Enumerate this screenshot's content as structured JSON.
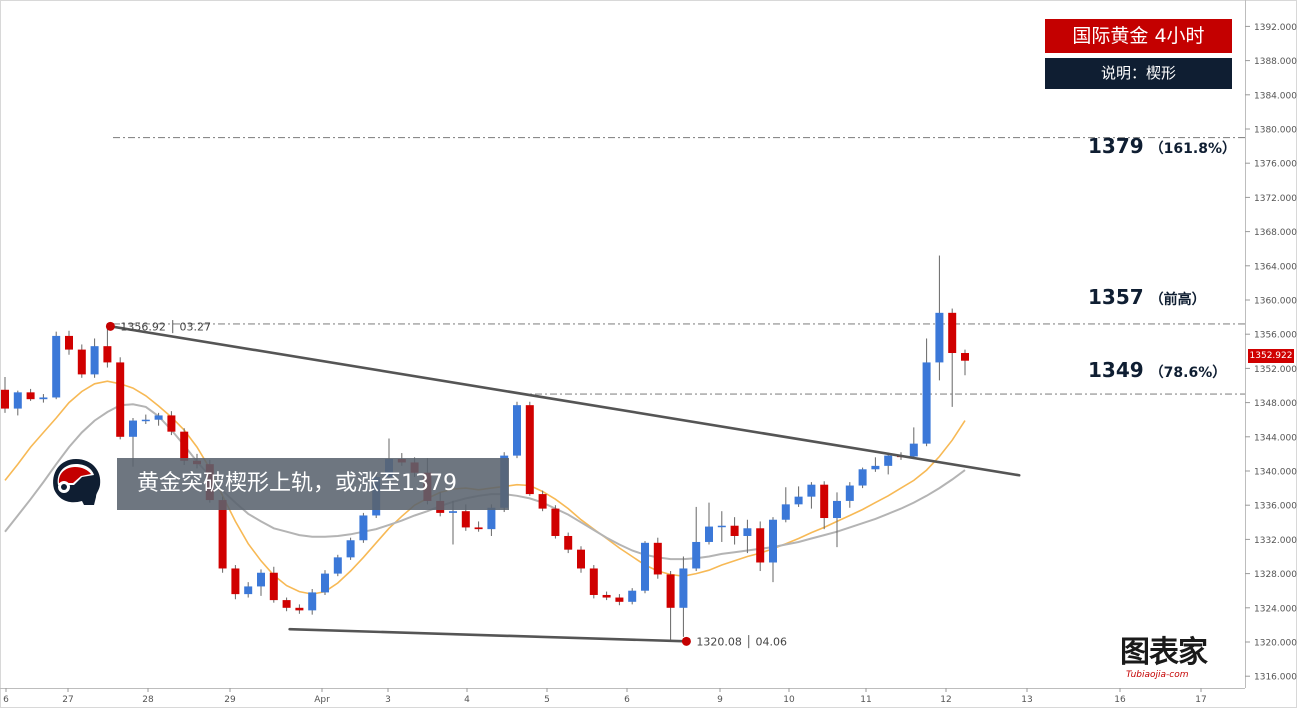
{
  "title": "国际黄金  4小时",
  "subtitle": "说明：楔形",
  "banner": "黄金突破楔形上轨，或涨至1379",
  "levels": [
    {
      "price": "1379",
      "note": "（161.8%）",
      "value": 1379
    },
    {
      "price": "1357",
      "note": "（前高）",
      "value": 1357.2
    },
    {
      "price": "1349",
      "note": "（78.6%）",
      "value": 1349
    }
  ],
  "current_price": "1352.922",
  "current_price_value": 1352.922,
  "logo": {
    "main": "图表家",
    "sub": "Tubiaojia-com"
  },
  "icons": {
    "avatar": "trader-head-icon",
    "logo": "tubiaojia-logo-icon"
  },
  "colors": {
    "bull": "#3b78d8",
    "bear": "#d00000",
    "ma_fast": "#f7b955",
    "ma_slow": "#b4b4b4",
    "trend": "#555555",
    "title_bg": "#c40000",
    "subtitle_bg": "#0f1e32"
  },
  "chart_data": {
    "type": "candlestick",
    "title": "国际黄金  4小时",
    "x_tick_labels": [
      "6",
      "27",
      "28",
      "29",
      "Apr",
      "3",
      "4",
      "5",
      "6",
      "9",
      "10",
      "11",
      "12",
      "13",
      "16",
      "17"
    ],
    "y_ticks": [
      1316,
      1320,
      1324,
      1328,
      1332,
      1336,
      1340,
      1344,
      1348,
      1352,
      1356,
      1360,
      1364,
      1368,
      1372,
      1376,
      1380,
      1384,
      1388,
      1392
    ],
    "y_tick_labels": [
      "1316.000",
      "1320.000",
      "1324.000",
      "1328.000",
      "1332.000",
      "1336.000",
      "1340.000",
      "1344.000",
      "1348.000",
      "1352.000",
      "1356.000",
      "1360.000",
      "1364.000",
      "1368.000",
      "1372.000",
      "1376.000",
      "1380.000",
      "1384.000",
      "1388.000",
      "1392.000"
    ],
    "ylim": [
      1314.5,
      1393.5
    ],
    "candles": [
      {
        "o": 1349.5,
        "h": 1351.0,
        "l": 1346.8,
        "c": 1347.3
      },
      {
        "o": 1347.3,
        "h": 1349.4,
        "l": 1346.5,
        "c": 1349.2
      },
      {
        "o": 1349.2,
        "h": 1349.6,
        "l": 1348.2,
        "c": 1348.4
      },
      {
        "o": 1348.4,
        "h": 1349.0,
        "l": 1348.0,
        "c": 1348.6
      },
      {
        "o": 1348.6,
        "h": 1356.3,
        "l": 1348.4,
        "c": 1355.8
      },
      {
        "o": 1355.8,
        "h": 1356.4,
        "l": 1353.6,
        "c": 1354.2
      },
      {
        "o": 1354.2,
        "h": 1354.8,
        "l": 1350.9,
        "c": 1351.3
      },
      {
        "o": 1351.3,
        "h": 1355.5,
        "l": 1350.9,
        "c": 1354.6
      },
      {
        "o": 1354.6,
        "h": 1356.9,
        "l": 1352.1,
        "c": 1352.7
      },
      {
        "o": 1352.7,
        "h": 1353.3,
        "l": 1343.7,
        "c": 1344.0
      },
      {
        "o": 1344.0,
        "h": 1346.2,
        "l": 1340.5,
        "c": 1345.9
      },
      {
        "o": 1345.9,
        "h": 1346.6,
        "l": 1345.5,
        "c": 1346.0
      },
      {
        "o": 1346.0,
        "h": 1346.8,
        "l": 1345.3,
        "c": 1346.5
      },
      {
        "o": 1346.5,
        "h": 1347.0,
        "l": 1344.2,
        "c": 1344.6
      },
      {
        "o": 1344.6,
        "h": 1345.0,
        "l": 1340.7,
        "c": 1341.2
      },
      {
        "o": 1341.2,
        "h": 1342.0,
        "l": 1340.3,
        "c": 1340.8
      },
      {
        "o": 1340.8,
        "h": 1341.3,
        "l": 1336.3,
        "c": 1336.6
      },
      {
        "o": 1336.6,
        "h": 1337.0,
        "l": 1328.1,
        "c": 1328.6
      },
      {
        "o": 1328.6,
        "h": 1329.0,
        "l": 1325.0,
        "c": 1325.6
      },
      {
        "o": 1325.6,
        "h": 1327.0,
        "l": 1325.2,
        "c": 1326.5
      },
      {
        "o": 1326.5,
        "h": 1328.5,
        "l": 1325.4,
        "c": 1328.1
      },
      {
        "o": 1328.1,
        "h": 1328.8,
        "l": 1324.6,
        "c": 1324.9
      },
      {
        "o": 1324.9,
        "h": 1325.2,
        "l": 1323.6,
        "c": 1324.0
      },
      {
        "o": 1324.0,
        "h": 1324.4,
        "l": 1323.3,
        "c": 1323.7
      },
      {
        "o": 1323.7,
        "h": 1326.2,
        "l": 1323.2,
        "c": 1325.8
      },
      {
        "o": 1325.8,
        "h": 1328.4,
        "l": 1325.5,
        "c": 1328.0
      },
      {
        "o": 1328.0,
        "h": 1330.2,
        "l": 1327.7,
        "c": 1329.9
      },
      {
        "o": 1329.9,
        "h": 1332.2,
        "l": 1329.6,
        "c": 1331.9
      },
      {
        "o": 1331.9,
        "h": 1335.1,
        "l": 1331.6,
        "c": 1334.8
      },
      {
        "o": 1334.8,
        "h": 1339.6,
        "l": 1334.5,
        "c": 1339.3
      },
      {
        "o": 1339.3,
        "h": 1343.8,
        "l": 1339.0,
        "c": 1341.4
      },
      {
        "o": 1341.4,
        "h": 1342.1,
        "l": 1340.6,
        "c": 1341.0
      },
      {
        "o": 1341.0,
        "h": 1341.6,
        "l": 1339.3,
        "c": 1339.8
      },
      {
        "o": 1339.8,
        "h": 1341.5,
        "l": 1336.1,
        "c": 1336.5
      },
      {
        "o": 1336.5,
        "h": 1337.5,
        "l": 1334.7,
        "c": 1335.1
      },
      {
        "o": 1335.1,
        "h": 1336.5,
        "l": 1331.4,
        "c": 1335.3
      },
      {
        "o": 1335.3,
        "h": 1336.1,
        "l": 1333.0,
        "c": 1333.4
      },
      {
        "o": 1333.4,
        "h": 1334.1,
        "l": 1332.9,
        "c": 1333.2
      },
      {
        "o": 1333.2,
        "h": 1336.1,
        "l": 1332.4,
        "c": 1335.7
      },
      {
        "o": 1335.7,
        "h": 1342.2,
        "l": 1335.2,
        "c": 1341.8
      },
      {
        "o": 1341.8,
        "h": 1348.1,
        "l": 1341.5,
        "c": 1347.7
      },
      {
        "o": 1347.7,
        "h": 1348.1,
        "l": 1337.1,
        "c": 1337.3
      },
      {
        "o": 1337.3,
        "h": 1337.7,
        "l": 1335.3,
        "c": 1335.6
      },
      {
        "o": 1335.6,
        "h": 1336.0,
        "l": 1332.1,
        "c": 1332.4
      },
      {
        "o": 1332.4,
        "h": 1332.8,
        "l": 1330.4,
        "c": 1330.8
      },
      {
        "o": 1330.8,
        "h": 1331.2,
        "l": 1328.1,
        "c": 1328.6
      },
      {
        "o": 1328.6,
        "h": 1329.0,
        "l": 1325.1,
        "c": 1325.5
      },
      {
        "o": 1325.5,
        "h": 1325.9,
        "l": 1324.9,
        "c": 1325.2
      },
      {
        "o": 1325.2,
        "h": 1325.6,
        "l": 1324.3,
        "c": 1324.7
      },
      {
        "o": 1324.7,
        "h": 1326.3,
        "l": 1324.4,
        "c": 1326.0
      },
      {
        "o": 1326.0,
        "h": 1331.8,
        "l": 1325.7,
        "c": 1331.6
      },
      {
        "o": 1331.6,
        "h": 1332.2,
        "l": 1327.4,
        "c": 1327.9
      },
      {
        "o": 1327.9,
        "h": 1328.3,
        "l": 1320.1,
        "c": 1324.0
      },
      {
        "o": 1324.0,
        "h": 1330.0,
        "l": 1320.6,
        "c": 1328.6
      },
      {
        "o": 1328.6,
        "h": 1335.8,
        "l": 1328.3,
        "c": 1331.7
      },
      {
        "o": 1331.7,
        "h": 1336.3,
        "l": 1331.4,
        "c": 1333.5
      },
      {
        "o": 1333.5,
        "h": 1335.3,
        "l": 1331.7,
        "c": 1333.6
      },
      {
        "o": 1333.6,
        "h": 1334.6,
        "l": 1331.4,
        "c": 1332.4
      },
      {
        "o": 1332.4,
        "h": 1334.3,
        "l": 1330.4,
        "c": 1333.3
      },
      {
        "o": 1333.3,
        "h": 1334.1,
        "l": 1328.3,
        "c": 1329.3
      },
      {
        "o": 1329.3,
        "h": 1334.6,
        "l": 1327.0,
        "c": 1334.3
      },
      {
        "o": 1334.3,
        "h": 1338.1,
        "l": 1334.0,
        "c": 1336.1
      },
      {
        "o": 1336.1,
        "h": 1338.2,
        "l": 1335.8,
        "c": 1337.0
      },
      {
        "o": 1337.0,
        "h": 1338.7,
        "l": 1335.6,
        "c": 1338.4
      },
      {
        "o": 1338.4,
        "h": 1338.8,
        "l": 1333.2,
        "c": 1334.5
      },
      {
        "o": 1334.5,
        "h": 1337.5,
        "l": 1331.1,
        "c": 1336.5
      },
      {
        "o": 1336.5,
        "h": 1338.7,
        "l": 1335.7,
        "c": 1338.3
      },
      {
        "o": 1338.3,
        "h": 1340.4,
        "l": 1338.0,
        "c": 1340.2
      },
      {
        "o": 1340.2,
        "h": 1341.6,
        "l": 1339.9,
        "c": 1340.6
      },
      {
        "o": 1340.6,
        "h": 1342.1,
        "l": 1339.6,
        "c": 1341.8
      },
      {
        "o": 1341.8,
        "h": 1342.2,
        "l": 1341.3,
        "c": 1341.7
      },
      {
        "o": 1341.7,
        "h": 1345.1,
        "l": 1341.4,
        "c": 1343.2
      },
      {
        "o": 1343.2,
        "h": 1355.5,
        "l": 1342.9,
        "c": 1352.7
      },
      {
        "o": 1352.7,
        "h": 1365.2,
        "l": 1350.6,
        "c": 1358.5
      },
      {
        "o": 1358.5,
        "h": 1359.0,
        "l": 1347.5,
        "c": 1353.8
      },
      {
        "o": 1353.8,
        "h": 1354.2,
        "l": 1351.2,
        "c": 1352.9
      }
    ],
    "moving_averages": [
      {
        "role": "fast",
        "values": [
          1338.9,
          1340.8,
          1342.8,
          1344.5,
          1346.2,
          1348.0,
          1349.3,
          1350.2,
          1350.5,
          1350.2,
          1349.7,
          1348.8,
          1347.6,
          1346.3,
          1344.8,
          1342.8,
          1340.3,
          1337.1,
          1334.1,
          1331.5,
          1329.5,
          1327.8,
          1326.6,
          1325.9,
          1325.6,
          1325.9,
          1326.9,
          1328.3,
          1329.9,
          1331.6,
          1333.3,
          1334.7,
          1336.0,
          1336.8,
          1337.5,
          1337.9,
          1338.0,
          1337.8,
          1338.0,
          1338.2,
          1338.4,
          1338.3,
          1337.6,
          1336.7,
          1335.6,
          1334.3,
          1333.2,
          1332.1,
          1331.0,
          1330.0,
          1329.0,
          1328.3,
          1327.9,
          1327.7,
          1328.0,
          1328.4,
          1329.0,
          1329.5,
          1330.0,
          1330.4,
          1330.9,
          1331.5,
          1332.1,
          1332.8,
          1333.4,
          1334.1,
          1334.8,
          1335.5,
          1336.3,
          1337.1,
          1338.0,
          1338.9,
          1340.1,
          1341.7,
          1343.6,
          1345.9
        ]
      },
      {
        "role": "slow",
        "values": [
          1332.9,
          1334.8,
          1336.7,
          1338.7,
          1340.8,
          1342.8,
          1344.5,
          1345.9,
          1346.9,
          1347.7,
          1347.8,
          1347.5,
          1346.4,
          1344.8,
          1343.0,
          1341.1,
          1339.4,
          1337.7,
          1336.3,
          1335.0,
          1334.1,
          1333.3,
          1332.9,
          1332.5,
          1332.3,
          1332.3,
          1332.4,
          1332.6,
          1332.9,
          1333.2,
          1333.7,
          1334.2,
          1334.8,
          1335.3,
          1335.9,
          1336.4,
          1336.8,
          1337.1,
          1337.3,
          1337.3,
          1337.1,
          1336.8,
          1336.3,
          1335.6,
          1334.9,
          1334.0,
          1333.1,
          1332.2,
          1331.4,
          1330.7,
          1330.2,
          1329.9,
          1329.7,
          1329.7,
          1329.8,
          1330.0,
          1330.3,
          1330.5,
          1330.7,
          1330.9,
          1331.1,
          1331.4,
          1331.7,
          1332.1,
          1332.5,
          1332.9,
          1333.4,
          1333.9,
          1334.4,
          1335.0,
          1335.6,
          1336.3,
          1337.1,
          1338.0,
          1339.0,
          1340.1
        ]
      }
    ],
    "trendlines": [
      {
        "role": "upper",
        "from_candle": 8,
        "from_price": 1356.92,
        "to_candle": 79,
        "to_price": 1339.5
      },
      {
        "role": "lower",
        "from_candle": 22,
        "from_price": 1321.5,
        "to_candle": 53,
        "to_price": 1320.08
      }
    ],
    "annotations": [
      {
        "label": "1356.92 │ 03.27",
        "candle": 8,
        "price": 1356.92
      },
      {
        "label": "1320.08 │ 04.06",
        "candle": 53,
        "price": 1320.08
      }
    ],
    "horizontal_levels": [
      1379,
      1357.2,
      1349
    ],
    "grid": false
  }
}
